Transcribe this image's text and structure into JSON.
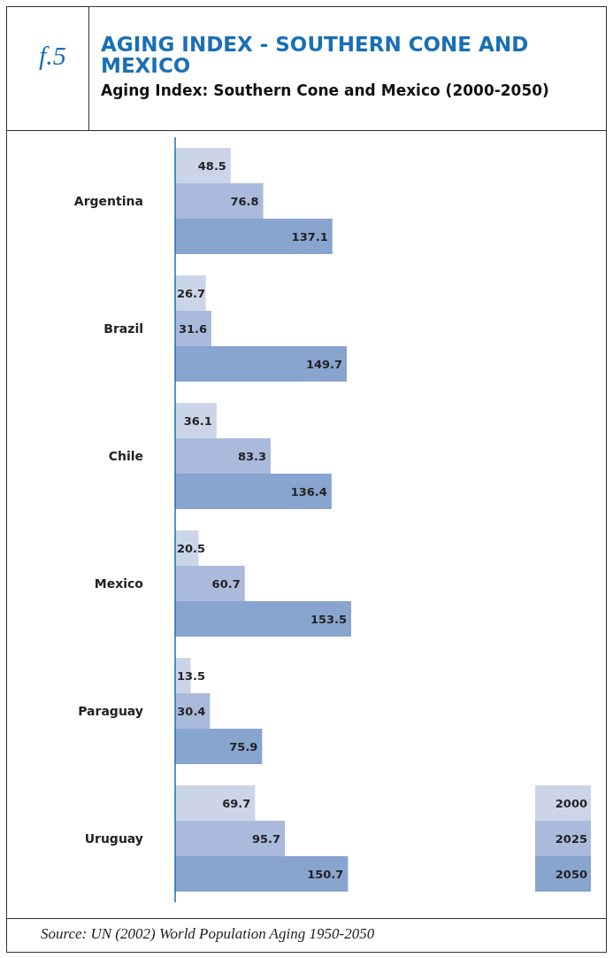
{
  "chart_data": {
    "type": "bar",
    "orientation": "horizontal",
    "title": "AGING INDEX - SOUTHERN CONE AND MEXICO",
    "subtitle": "Aging Index: Southern Cone and Mexico (2000-2050)",
    "annotations": [
      "f.5",
      "Source: UN (2002) World Population Aging 1950-2050"
    ],
    "categories": [
      "Argentina",
      "Brazil",
      "Chile",
      "Mexico",
      "Paraguay",
      "Uruguay"
    ],
    "series": [
      {
        "name": "2000",
        "color": "#ccd5e8",
        "values": [
          48.5,
          26.7,
          36.1,
          20.5,
          13.5,
          69.7
        ]
      },
      {
        "name": "2025",
        "color": "#aabadc",
        "values": [
          76.8,
          31.6,
          83.3,
          60.7,
          30.4,
          95.7
        ]
      },
      {
        "name": "2050",
        "color": "#88a5d0",
        "values": [
          137.1,
          149.7,
          136.4,
          153.5,
          75.9,
          150.7
        ]
      }
    ],
    "data_labels": true,
    "legend": "bottom right"
  }
}
